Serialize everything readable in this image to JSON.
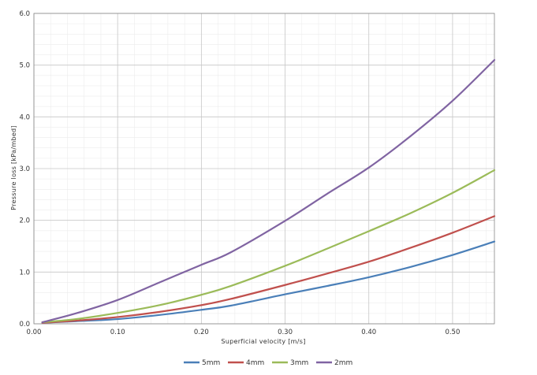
{
  "chart_data": {
    "type": "line",
    "title": "",
    "xlabel": "Superficial velocity [m/s]",
    "ylabel": "Pressure loss [kPa/mbed]",
    "xlim": [
      0.0,
      0.55
    ],
    "ylim": [
      0.0,
      6.0
    ],
    "x_ticks": [
      0.0,
      0.1,
      0.2,
      0.3,
      0.4,
      0.5
    ],
    "x_tick_labels": [
      "0.00",
      "0.10",
      "0.20",
      "0.30",
      "0.40",
      "0.50"
    ],
    "y_ticks": [
      0.0,
      1.0,
      2.0,
      3.0,
      4.0,
      5.0,
      6.0
    ],
    "y_tick_labels": [
      "0.0",
      "1.0",
      "2.0",
      "3.0",
      "4.0",
      "5.0",
      "6.0"
    ],
    "grid": true,
    "legend_position": "bottom-center",
    "series": [
      {
        "name": "5mm",
        "color": "#4a7fb8",
        "x": [
          0.01,
          0.05,
          0.1,
          0.15,
          0.2,
          0.235,
          0.3,
          0.35,
          0.4,
          0.45,
          0.5,
          0.55
        ],
        "y": [
          0.02,
          0.05,
          0.09,
          0.17,
          0.27,
          0.35,
          0.57,
          0.73,
          0.9,
          1.1,
          1.33,
          1.59
        ]
      },
      {
        "name": "4mm",
        "color": "#c0504d",
        "x": [
          0.01,
          0.05,
          0.1,
          0.15,
          0.2,
          0.235,
          0.3,
          0.35,
          0.4,
          0.45,
          0.5,
          0.55
        ],
        "y": [
          0.02,
          0.06,
          0.13,
          0.23,
          0.36,
          0.48,
          0.75,
          0.97,
          1.2,
          1.47,
          1.76,
          2.08
        ]
      },
      {
        "name": "3mm",
        "color": "#9bbb59",
        "x": [
          0.01,
          0.05,
          0.1,
          0.15,
          0.2,
          0.235,
          0.3,
          0.35,
          0.4,
          0.45,
          0.5,
          0.55
        ],
        "y": [
          0.03,
          0.09,
          0.21,
          0.36,
          0.56,
          0.73,
          1.12,
          1.45,
          1.79,
          2.14,
          2.53,
          2.97
        ]
      },
      {
        "name": "2mm",
        "color": "#8064a2",
        "x": [
          0.01,
          0.05,
          0.1,
          0.15,
          0.2,
          0.235,
          0.3,
          0.35,
          0.4,
          0.45,
          0.5,
          0.55
        ],
        "y": [
          0.03,
          0.2,
          0.46,
          0.8,
          1.14,
          1.38,
          1.99,
          2.51,
          3.02,
          3.63,
          4.31,
          5.1
        ]
      }
    ]
  }
}
